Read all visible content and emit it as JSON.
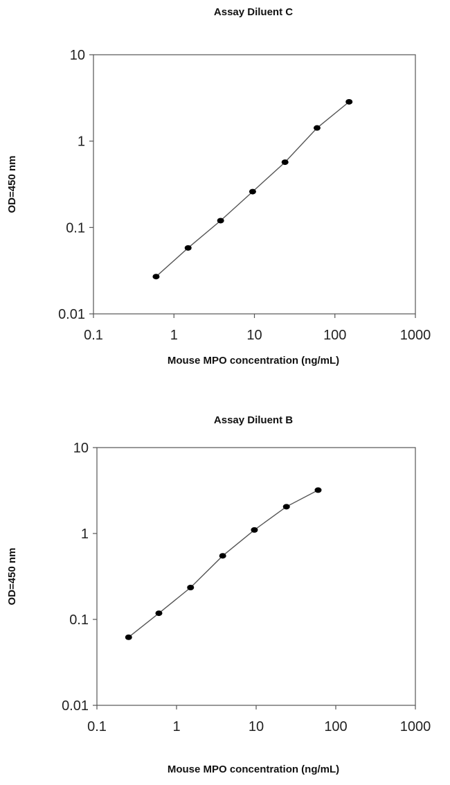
{
  "chart_data": [
    {
      "type": "line",
      "title": "Assay Diluent C",
      "xlabel": "Mouse MPO concentration (ng/mL)",
      "ylabel": "OD=450 nm",
      "xscale": "log",
      "yscale": "log",
      "xlim": [
        0.1,
        1000
      ],
      "ylim": [
        0.01,
        10
      ],
      "xticks": [
        "0.1",
        "1",
        "10",
        "100",
        "1000"
      ],
      "yticks": [
        "0.01",
        "0.1",
        "1",
        "10"
      ],
      "grid": false,
      "series": [
        {
          "x": [
            0.6,
            1.5,
            3.8,
            9.5,
            24,
            60,
            150
          ],
          "y": [
            0.027,
            0.058,
            0.12,
            0.26,
            0.57,
            1.42,
            2.85
          ]
        }
      ]
    },
    {
      "type": "line",
      "title": "Assay Diluent B",
      "xlabel": "Mouse MPO concentration (ng/mL)",
      "ylabel": "OD=450 nm",
      "xscale": "log",
      "yscale": "log",
      "xlim": [
        0.1,
        1000
      ],
      "ylim": [
        0.01,
        10
      ],
      "xticks": [
        "0.1",
        "1",
        "10",
        "100",
        "1000"
      ],
      "yticks": [
        "0.01",
        "0.1",
        "1",
        "10"
      ],
      "grid": false,
      "series": [
        {
          "x": [
            0.25,
            0.6,
            1.5,
            3.8,
            9.5,
            24,
            60
          ],
          "y": [
            0.062,
            0.118,
            0.235,
            0.55,
            1.1,
            2.05,
            3.2
          ]
        }
      ]
    }
  ]
}
